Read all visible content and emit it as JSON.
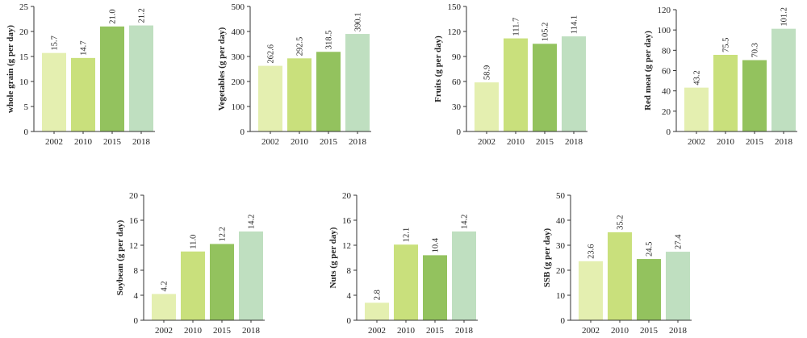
{
  "chart_data": [
    {
      "type": "bar",
      "categories": [
        "2002",
        "2010",
        "2015",
        "2018"
      ],
      "values": [
        15.7,
        14.7,
        21.0,
        21.2
      ],
      "data_labels": [
        "15.7",
        "14.7",
        "21.0",
        "21.2"
      ],
      "ylabel": "whole grain (g per day)",
      "ylim": [
        0,
        25
      ],
      "yticks": [
        "0",
        "5",
        "10",
        "15",
        "20",
        "25"
      ],
      "grid": false
    },
    {
      "type": "bar",
      "categories": [
        "2002",
        "2010",
        "2015",
        "2018"
      ],
      "values": [
        262.6,
        292.5,
        318.5,
        390.1
      ],
      "data_labels": [
        "262.6",
        "292.5",
        "318.5",
        "390.1"
      ],
      "ylabel": "Vegetables (g per day)",
      "ylim": [
        0,
        500
      ],
      "yticks": [
        "0",
        "100",
        "200",
        "300",
        "400",
        "500"
      ],
      "grid": false
    },
    {
      "type": "bar",
      "categories": [
        "2002",
        "2010",
        "2015",
        "2018"
      ],
      "values": [
        58.9,
        111.7,
        105.2,
        114.1
      ],
      "data_labels": [
        "58.9",
        "111.7",
        "105.2",
        "114.1"
      ],
      "ylabel": "Fruits (g per day)",
      "ylim": [
        0,
        150
      ],
      "yticks": [
        "0",
        "30",
        "60",
        "90",
        "120",
        "150"
      ],
      "grid": false
    },
    {
      "type": "bar",
      "categories": [
        "2002",
        "2010",
        "2015",
        "2018"
      ],
      "values": [
        43.2,
        75.5,
        70.3,
        101.2
      ],
      "data_labels": [
        "43.2",
        "75.5",
        "70.3",
        "101.2"
      ],
      "ylabel": "Red meat (g per day)",
      "ylim": [
        0,
        120
      ],
      "yticks": [
        "0",
        "20",
        "40",
        "60",
        "80",
        "100",
        "120"
      ],
      "grid": false
    },
    {
      "type": "bar",
      "categories": [
        "2002",
        "2010",
        "2015",
        "2018"
      ],
      "values": [
        4.2,
        11.0,
        12.2,
        14.2
      ],
      "data_labels": [
        "4.2",
        "11.0",
        "12.2",
        "14.2"
      ],
      "ylabel": "Soybean (g per day)",
      "ylim": [
        0,
        20
      ],
      "yticks": [
        "0",
        "4",
        "8",
        "12",
        "16",
        "20"
      ],
      "grid": false
    },
    {
      "type": "bar",
      "categories": [
        "2002",
        "2010",
        "2015",
        "2018"
      ],
      "values": [
        2.8,
        12.1,
        10.4,
        14.2
      ],
      "data_labels": [
        "2.8",
        "12.1",
        "10.4",
        "14.2"
      ],
      "ylabel": "Nuts (g per day)",
      "ylim": [
        0,
        20
      ],
      "yticks": [
        "0",
        "4",
        "8",
        "12",
        "16",
        "20"
      ],
      "grid": false
    },
    {
      "type": "bar",
      "categories": [
        "2002",
        "2010",
        "2015",
        "2018"
      ],
      "values": [
        23.6,
        35.2,
        24.5,
        27.4
      ],
      "data_labels": [
        "23.6",
        "35.2",
        "24.5",
        "27.4"
      ],
      "ylabel": "SSB (g per day)",
      "ylim": [
        0,
        50
      ],
      "yticks": [
        "0",
        "10",
        "20",
        "30",
        "40",
        "50"
      ],
      "grid": false
    }
  ],
  "colors": {
    "bar_2002": "#e4efb0",
    "bar_2010": "#c9e07c",
    "bar_2015": "#93c25e",
    "bar_2018": "#bfdfc0",
    "axis": "#333333"
  }
}
